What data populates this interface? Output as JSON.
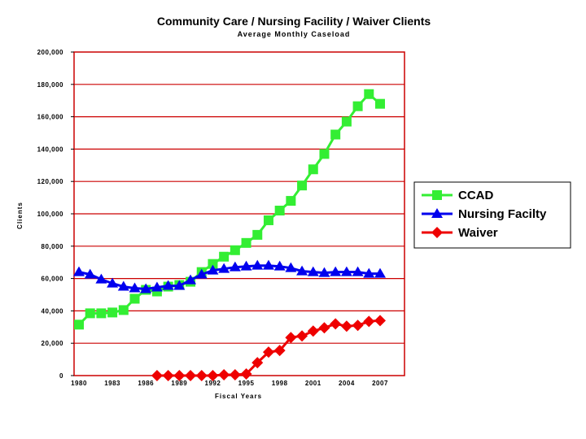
{
  "chart_data": {
    "type": "line",
    "title": "Community Care / Nursing Facility / Waiver Clients",
    "subtitle": "Average Monthly Caseload",
    "xlabel": "Fiscal Years",
    "ylabel": "Clients",
    "ylim": [
      0,
      200000
    ],
    "xlim": [
      1980,
      2007
    ],
    "y_ticks": [
      0,
      20000,
      40000,
      60000,
      80000,
      100000,
      120000,
      140000,
      160000,
      180000,
      200000
    ],
    "y_tick_labels": [
      "0",
      "20,000",
      "40,000",
      "60,000",
      "80,000",
      "100,000",
      "120,000",
      "140,000",
      "160,000",
      "180,000",
      "200,000"
    ],
    "x_ticks": [
      1980,
      1983,
      1986,
      1989,
      1992,
      1995,
      1998,
      2001,
      2004,
      2007
    ],
    "x_tick_labels": [
      "1980",
      "1983",
      "1986",
      "1989",
      "1992",
      "1995",
      "1998",
      "2001",
      "2004",
      "2007"
    ],
    "grid": "horizontal",
    "legend_position": "right",
    "series": [
      {
        "name": "CCAD",
        "color": "#33ee33",
        "marker": "square",
        "x": [
          1980,
          1981,
          1982,
          1983,
          1984,
          1985,
          1986,
          1987,
          1988,
          1989,
          1990,
          1991,
          1992,
          1993,
          1994,
          1995,
          1996,
          1997,
          1998,
          1999,
          2000,
          2001,
          2002,
          2003,
          2004,
          2005,
          2006,
          2007
        ],
        "values": [
          31500,
          38500,
          38500,
          39000,
          40500,
          47500,
          53000,
          52000,
          55000,
          56000,
          58000,
          64000,
          69000,
          73500,
          77500,
          82000,
          87000,
          96000,
          102000,
          108000,
          117500,
          127500,
          137000,
          149000,
          157000,
          166500,
          174000,
          168000
        ]
      },
      {
        "name": "Nursing Facilty",
        "color": "#0000ee",
        "marker": "triangle",
        "x": [
          1980,
          1981,
          1982,
          1983,
          1984,
          1985,
          1986,
          1987,
          1988,
          1989,
          1990,
          1991,
          1992,
          1993,
          1994,
          1995,
          1996,
          1997,
          1998,
          1999,
          2000,
          2001,
          2002,
          2003,
          2004,
          2005,
          2006,
          2007
        ],
        "values": [
          64000,
          62500,
          59500,
          57000,
          55000,
          54000,
          53500,
          54500,
          55500,
          55500,
          59000,
          62500,
          65000,
          66000,
          67000,
          67500,
          68000,
          68000,
          67500,
          66500,
          64500,
          64000,
          63500,
          64000,
          64000,
          64000,
          63000,
          63000
        ]
      },
      {
        "name": "Waiver",
        "color": "#ee0000",
        "marker": "diamond",
        "x": [
          1987,
          1988,
          1989,
          1990,
          1991,
          1992,
          1993,
          1994,
          1995,
          1996,
          1997,
          1998,
          1999,
          2000,
          2001,
          2002,
          2003,
          2004,
          2005,
          2006,
          2007
        ],
        "values": [
          0,
          0,
          0,
          0,
          0,
          0,
          500,
          500,
          1000,
          8000,
          14500,
          15500,
          23500,
          24500,
          27500,
          29500,
          32000,
          30500,
          31000,
          33500,
          34000
        ]
      }
    ]
  }
}
